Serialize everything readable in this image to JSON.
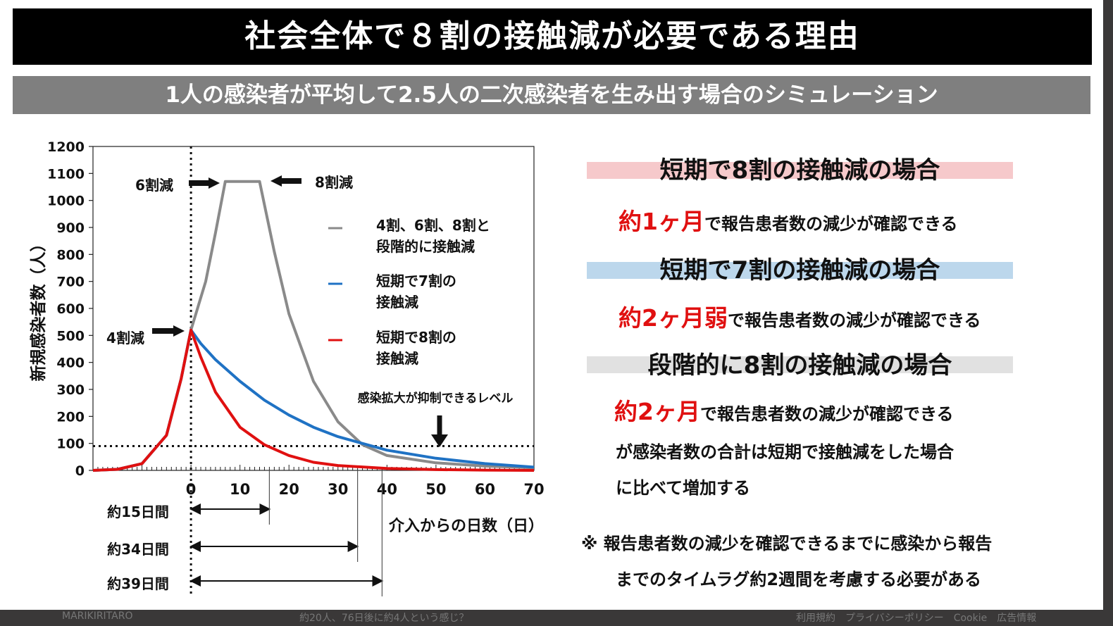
{
  "title": "社会全体で８割の接触減が必要である理由",
  "subtitle": "1人の感染者が平均して2.5人の二次感染者を生み出す場合のシミュレーション",
  "chart_data": {
    "type": "line",
    "xlabel": "介入からの日数（日）",
    "ylabel": "新規感染者数（人）",
    "xlim": [
      -20,
      70
    ],
    "ylim": [
      0,
      1200
    ],
    "x_ticks": [
      "0",
      "10",
      "20",
      "30",
      "40",
      "50",
      "60",
      "70"
    ],
    "y_ticks": [
      "0",
      "100",
      "200",
      "300",
      "400",
      "500",
      "600",
      "700",
      "800",
      "900",
      "1000",
      "1100",
      "1200"
    ],
    "series": [
      {
        "name": "4割、6割、8割と段階的に接触減",
        "color": "#8a8a8a",
        "x": [
          -20,
          -15,
          -10,
          -5,
          -2,
          0,
          3,
          5,
          7,
          10,
          14,
          17,
          20,
          25,
          30,
          35,
          40,
          50,
          60,
          70
        ],
        "y": [
          0,
          4,
          25,
          130,
          340,
          520,
          700,
          880,
          1070,
          1070,
          1070,
          810,
          580,
          330,
          180,
          95,
          55,
          28,
          16,
          10
        ]
      },
      {
        "name": "短期で7割の接触減",
        "color": "#1f72c4",
        "x": [
          -20,
          -15,
          -10,
          -5,
          -2,
          0,
          2,
          5,
          10,
          15,
          20,
          25,
          30,
          40,
          50,
          60,
          70
        ],
        "y": [
          0,
          4,
          25,
          130,
          340,
          520,
          470,
          410,
          330,
          260,
          205,
          160,
          125,
          75,
          45,
          25,
          12
        ]
      },
      {
        "name": "短期で8割の接触減",
        "color": "#e01010",
        "x": [
          -20,
          -15,
          -10,
          -5,
          -2,
          0,
          2,
          5,
          10,
          15,
          20,
          25,
          30,
          40,
          50,
          60,
          70
        ],
        "y": [
          0,
          4,
          25,
          130,
          340,
          520,
          420,
          290,
          160,
          95,
          55,
          30,
          18,
          7,
          3,
          1,
          0
        ]
      }
    ],
    "threshold": {
      "y": 90,
      "label": "感染拡大が抑制できるレベル"
    },
    "annotations": [
      "6割減",
      "8割減",
      "4割減"
    ],
    "durations": [
      {
        "label": "約15日間",
        "days": 16
      },
      {
        "label": "約34日間",
        "days": 34
      },
      {
        "label": "約39日間",
        "days": 39
      }
    ]
  },
  "right_panel": {
    "sections": [
      {
        "header": "短期で8割の接触減の場合",
        "highlight": "#f6c9cb",
        "emphasis": "約1ヶ月",
        "text": "で報告患者数の減少が確認できる",
        "lines": []
      },
      {
        "header": "短期で7割の接触減の場合",
        "highlight": "#bcd7ec",
        "emphasis": "約2ヶ月弱",
        "text": "で報告患者数の減少が確認できる",
        "lines": []
      },
      {
        "header": "段階的に8割の接触減の場合",
        "highlight": "#e1e1e1",
        "emphasis": "約2ヶ月",
        "text": "で報告患者数の減少が確認できる",
        "lines": [
          "が感染者数の合計は短期で接触減をした場合",
          "に比べて増加する"
        ]
      }
    ],
    "note_line1": "※ 報告患者数の減少を確認できるまでに感染から報告",
    "note_line2": "までのタイムラグ約2週間を考慮する必要がある"
  },
  "footer": {
    "left": "MARIKIRITARO",
    "mid": "約20人、76日後に約4人という感じ？",
    "right": "利用規約　プライバシーポリシー　Cookie　広告情報"
  }
}
